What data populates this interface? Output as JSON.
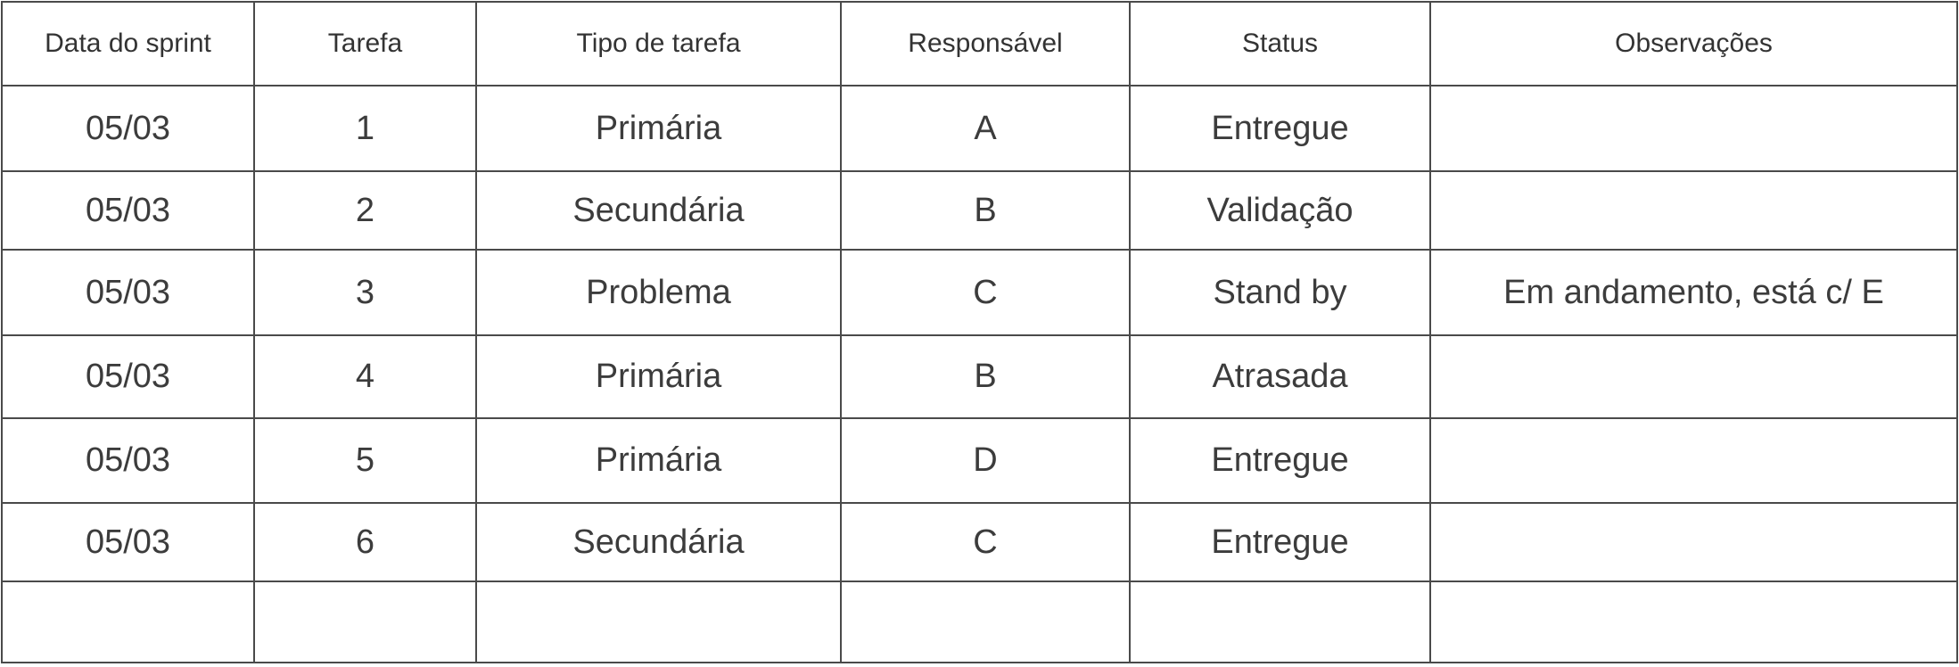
{
  "table": {
    "headers": [
      "Data do sprint",
      "Tarefa",
      "Tipo de tarefa",
      "Responsável",
      "Status",
      "Observações"
    ],
    "rows": [
      [
        "05/03",
        "1",
        "Primária",
        "A",
        "Entregue",
        ""
      ],
      [
        "05/03",
        "2",
        "Secundária",
        "B",
        "Validação",
        ""
      ],
      [
        "05/03",
        "3",
        "Problema",
        "C",
        "Stand by",
        "Em andamento, está c/ E"
      ],
      [
        "05/03",
        "4",
        "Primária",
        "B",
        "Atrasada",
        ""
      ],
      [
        "05/03",
        "5",
        "Primária",
        "D",
        "Entregue",
        ""
      ],
      [
        "05/03",
        "6",
        "Secundária",
        "C",
        "Entregue",
        ""
      ],
      [
        "",
        "",
        "",
        "",
        "",
        ""
      ]
    ]
  }
}
